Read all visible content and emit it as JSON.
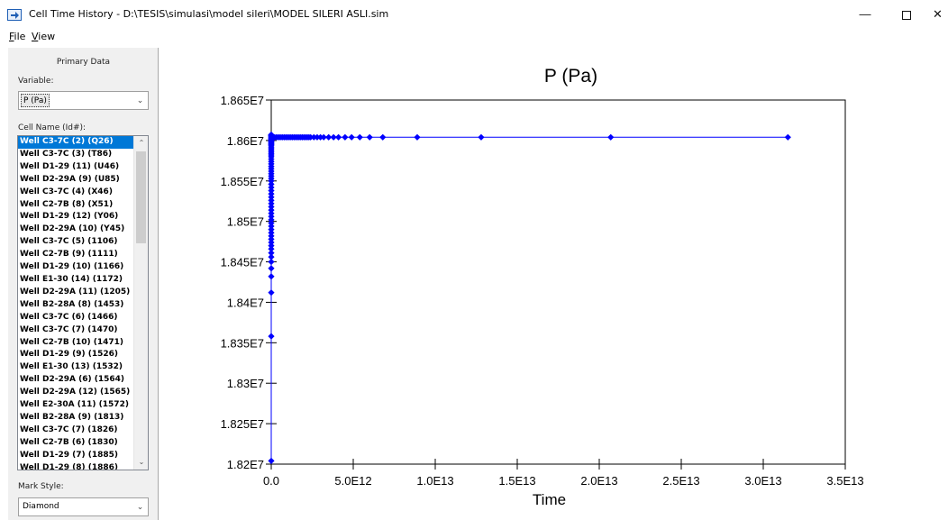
{
  "window": {
    "title": "Cell Time History - D:\\TESIS\\simulasi\\model sileri\\MODEL SILERI ASLI.sim",
    "minimize": "—",
    "close": "✕"
  },
  "menu": {
    "file_first": "F",
    "file_rest": "ile",
    "view_first": "V",
    "view_rest": "iew"
  },
  "panel": {
    "section_title": "Primary Data",
    "variable_label": "Variable:",
    "variable_value": "P (Pa)",
    "cell_name_label": "Cell Name (Id#):",
    "cells": [
      "Well C3-7C (2) (Q26)",
      "Well C3-7C (3) (T86)",
      "Well D1-29 (11) (U46)",
      "Well D2-29A (9) (U85)",
      "Well C3-7C (4) (X46)",
      "Well C2-7B (8) (X51)",
      "Well D1-29 (12) (Y06)",
      "Well D2-29A (10) (Y45)",
      "Well C3-7C (5) (1106)",
      "Well C2-7B (9) (1111)",
      "Well D1-29 (10) (1166)",
      "Well E1-30 (14) (1172)",
      "Well D2-29A (11) (1205)",
      "Well B2-28A (8) (1453)",
      "Well C3-7C (6) (1466)",
      "Well C3-7C (7) (1470)",
      "Well C2-7B (10) (1471)",
      "Well D1-29 (9) (1526)",
      "Well E1-30 (13) (1532)",
      "Well D2-29A (6) (1564)",
      "Well D2-29A (12) (1565)",
      "Well E2-30A (11) (1572)",
      "Well B2-28A (9) (1813)",
      "Well C3-7C (7) (1826)",
      "Well C2-7B (6) (1830)",
      "Well D1-29 (7) (1885)",
      "Well D1-29 (8) (1886)"
    ],
    "selected_index": 0,
    "mark_style_label": "Mark Style:",
    "mark_style_value": "Diamond"
  },
  "chart_data": {
    "type": "scatter",
    "title": "P (Pa)",
    "xlabel": "Time",
    "ylabel": "",
    "xlim": [
      0,
      35000000000000.0
    ],
    "ylim": [
      18200000.0,
      18650000.0
    ],
    "x_ticks": [
      0,
      5000000000000.0,
      10000000000000.0,
      15000000000000.0,
      20000000000000.0,
      25000000000000.0,
      30000000000000.0,
      35000000000000.0
    ],
    "x_tick_labels": [
      "0.0",
      "5.0E12",
      "1.0E13",
      "1.5E13",
      "2.0E13",
      "2.5E13",
      "3.0E13",
      "3.5E13"
    ],
    "y_ticks": [
      18200000.0,
      18250000.0,
      18300000.0,
      18350000.0,
      18400000.0,
      18450000.0,
      18500000.0,
      18550000.0,
      18600000.0,
      18650000.0
    ],
    "y_tick_labels": [
      "1.82E7",
      "1.825E7",
      "1.83E7",
      "1.835E7",
      "1.84E7",
      "1.845E7",
      "1.85E7",
      "1.855E7",
      "1.86E7",
      "1.865E7"
    ],
    "marker": "diamond",
    "color": "#0000ff",
    "grid": false,
    "legend": "none",
    "series": [
      {
        "x": [
          0,
          0,
          0,
          0,
          0,
          0,
          0,
          0,
          0,
          0,
          0,
          0,
          0,
          0,
          0,
          0,
          0,
          0,
          0,
          0,
          0,
          0,
          0,
          0,
          0,
          0,
          0,
          0,
          0,
          0,
          0,
          0,
          0,
          0,
          0,
          0,
          0,
          0,
          0,
          0,
          0,
          0,
          0,
          0,
          0,
          0,
          0,
          0,
          0,
          0,
          0,
          0,
          0,
          0,
          0,
          0,
          0,
          0,
          0,
          0,
          0,
          0,
          0,
          100000000000.0,
          200000000000.0,
          300000000000.0,
          400000000000.0,
          500000000000.0,
          600000000000.0,
          700000000000.0,
          800000000000.0,
          900000000000.0,
          1000000000000.0,
          1100000000000.0,
          1200000000000.0,
          1300000000000.0,
          1400000000000.0,
          1500000000000.0,
          1600000000000.0,
          1700000000000.0,
          1800000000000.0,
          1900000000000.0,
          2000000000000.0,
          2100000000000.0,
          2200000000000.0,
          2300000000000.0,
          2400000000000.0,
          2600000000000.0,
          2800000000000.0,
          3000000000000.0,
          3200000000000.0,
          3500000000000.0,
          3800000000000.0,
          4100000000000.0,
          4500000000000.0,
          4900000000000.0,
          5400000000000.0,
          6000000000000.0,
          6800000000000.0,
          8900000000000.0,
          12800000000000.0,
          20700000000000.0,
          31500000000000.0
        ],
        "y": [
          18204000.0,
          18358000.0,
          18412000.0,
          18432000.0,
          18442000.0,
          18450000.0,
          18456000.0,
          18461000.0,
          18466000.0,
          18470000.0,
          18474000.0,
          18478000.0,
          18482000.0,
          18486000.0,
          18490000.0,
          18494000.0,
          18498000.0,
          18502000.0,
          18506000.0,
          18510000.0,
          18514000.0,
          18518000.0,
          18522000.0,
          18526000.0,
          18530000.0,
          18534000.0,
          18538000.0,
          18542000.0,
          18546000.0,
          18550000.0,
          18553000.0,
          18556000.0,
          18559000.0,
          18562000.0,
          18565000.0,
          18568000.0,
          18571000.0,
          18574000.0,
          18577000.0,
          18580000.0,
          18582000.0,
          18584000.0,
          18586000.0,
          18588000.0,
          18590000.0,
          18592000.0,
          18594000.0,
          18595000.0,
          18596000.0,
          18597000.0,
          18598000.0,
          18599000.0,
          18600000.0,
          18601000.0,
          18602000.0,
          18603000.0,
          18604000.0,
          18605000.0,
          18606000.0,
          18606000.0,
          18607000.0,
          18607000.0,
          18607000.0,
          18604000.0,
          18604000.0,
          18604000.0,
          18604000.0,
          18604000.0,
          18604000.0,
          18604000.0,
          18604000.0,
          18604000.0,
          18604000.0,
          18604000.0,
          18604000.0,
          18604000.0,
          18604000.0,
          18604000.0,
          18604000.0,
          18604000.0,
          18604000.0,
          18604000.0,
          18604000.0,
          18604000.0,
          18604000.0,
          18604000.0,
          18604000.0,
          18604000.0,
          18604000.0,
          18604000.0,
          18604000.0,
          18604000.0,
          18604000.0,
          18604000.0,
          18604000.0,
          18604000.0,
          18604000.0,
          18604000.0,
          18604000.0,
          18604000.0,
          18604000.0,
          18604000.0,
          18604000.0
        ]
      }
    ]
  }
}
